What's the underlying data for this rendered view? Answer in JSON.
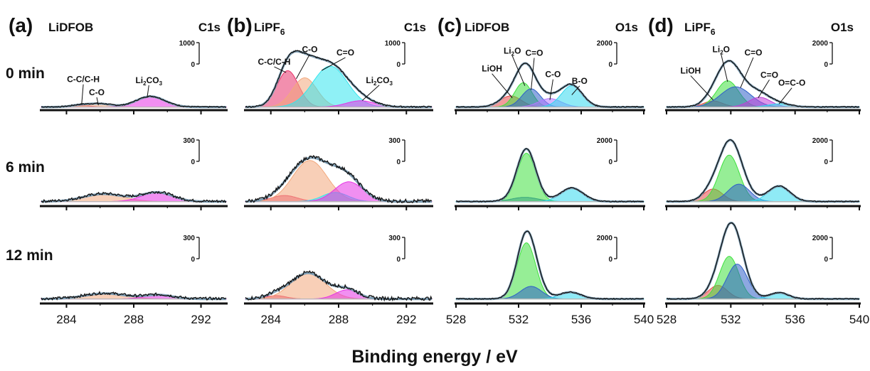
{
  "figure": {
    "xlabel": "Binding energy / eV",
    "panel_letters": [
      "(a)",
      "(b)",
      "(c)",
      "(d)"
    ],
    "time_labels": [
      "0 min",
      "6 min",
      "12 min"
    ]
  },
  "colors": {
    "raw": "#111111",
    "envelope": "#7f9fb5",
    "background": "#b8b8b8",
    "CC": "#e8336b",
    "CO": "#f3a87c",
    "CdO": "#33e6ee",
    "Li2CO3": "#e533e5",
    "LiOH": "#e84b4b",
    "Li2O": "#3fe03f",
    "C=O": "#3060c8",
    "C-O": "#b478ff",
    "B-O": "#33d8ee",
    "C=O2": "#c040d8",
    "O=C-O": "#33d8ee"
  },
  "chart_data": [
    {
      "panel": "(a)",
      "electrolyte": "LiDFOB",
      "region": "C1s",
      "type": "line",
      "xlim": [
        282.5,
        293.5
      ],
      "xticks": [
        284,
        288,
        292
      ],
      "xlabel": "Binding energy / eV",
      "rows": [
        {
          "time": "0 min",
          "scale_label": [
            "1000",
            "0"
          ],
          "scale_value": 1000,
          "ymax": 1450,
          "noise": 12,
          "labels": [
            {
              "text": "C-C/C-H",
              "x": 285.0,
              "y": 560,
              "ax": 284.9,
              "ay": 70
            },
            {
              "text": "C-O",
              "x": 285.8,
              "y": 280,
              "ax": 285.9,
              "ay": 60
            },
            {
              "text": "Li2CO3",
              "x": 288.9,
              "y": 540,
              "ax": 288.8,
              "ay": 230
            }
          ],
          "peaks": [
            {
              "name": "C-C/C-H",
              "colorKey": "CC",
              "center": 284.8,
              "fwhm": 1.3,
              "height": 40
            },
            {
              "name": "C-O",
              "colorKey": "CO",
              "center": 286.0,
              "fwhm": 1.6,
              "height": 70
            },
            {
              "name": "Li2CO3",
              "colorKey": "Li2CO3",
              "center": 289.0,
              "fwhm": 2.0,
              "height": 230
            }
          ]
        },
        {
          "time": "6 min",
          "scale_label": [
            "300",
            "0"
          ],
          "scale_value": 300,
          "ymax": 420,
          "noise": 9,
          "labels": [],
          "peaks": [
            {
              "name": "C-O",
              "colorKey": "CO",
              "center": 286.2,
              "fwhm": 2.8,
              "height": 50
            },
            {
              "name": "Li2CO3",
              "colorKey": "Li2CO3",
              "center": 289.4,
              "fwhm": 2.2,
              "height": 60
            }
          ]
        },
        {
          "time": "12 min",
          "scale_label": [
            "300",
            "0"
          ],
          "scale_value": 300,
          "ymax": 420,
          "noise": 9,
          "labels": [],
          "peaks": [
            {
              "name": "C-O",
              "colorKey": "CO",
              "center": 286.3,
              "fwhm": 2.9,
              "height": 36
            },
            {
              "name": "Li2CO3",
              "colorKey": "Li2CO3",
              "center": 289.5,
              "fwhm": 2.0,
              "height": 26
            }
          ]
        }
      ]
    },
    {
      "panel": "(b)",
      "electrolyte": "LiPF",
      "electrolyte_sub": "6",
      "region": "C1s",
      "type": "line",
      "xlim": [
        282.5,
        293.5
      ],
      "xticks": [
        284,
        288,
        292
      ],
      "xlabel": "Binding energy / eV",
      "rows": [
        {
          "time": "0 min",
          "scale_label": [
            "1000",
            "0"
          ],
          "scale_value": 1000,
          "ymax": 1600,
          "noise": 18,
          "labels": [
            {
              "text": "C-C/C-H",
              "x": 284.2,
              "y": 1040,
              "ax": 284.9,
              "ay": 850
            },
            {
              "text": "C-O",
              "x": 286.3,
              "y": 1340,
              "ax": 285.5,
              "ay": 700
            },
            {
              "text": "C=O",
              "x": 288.4,
              "y": 1260,
              "ax": 287.0,
              "ay": 900
            },
            {
              "text": "Li2CO3",
              "x": 290.4,
              "y": 600,
              "ax": 289.4,
              "ay": 180
            }
          ],
          "peaks": [
            {
              "name": "C-C/C-H",
              "colorKey": "CC",
              "center": 285.0,
              "fwhm": 1.5,
              "height": 870
            },
            {
              "name": "C-O",
              "colorKey": "CO",
              "center": 286.0,
              "fwhm": 1.7,
              "height": 700
            },
            {
              "name": "C=O",
              "colorKey": "CdO",
              "center": 287.5,
              "fwhm": 2.4,
              "height": 980
            },
            {
              "name": "Li2CO3",
              "colorKey": "Li2CO3",
              "center": 289.3,
              "fwhm": 2.0,
              "height": 150
            }
          ]
        },
        {
          "time": "6 min",
          "scale_label": [
            "300",
            "0"
          ],
          "scale_value": 300,
          "ymax": 420,
          "noise": 12,
          "labels": [],
          "peaks": [
            {
              "name": "C-C/C-H",
              "colorKey": "CC",
              "center": 284.8,
              "fwhm": 1.8,
              "height": 40
            },
            {
              "name": "C-O",
              "colorKey": "CO",
              "center": 286.3,
              "fwhm": 2.4,
              "height": 270
            },
            {
              "name": "C=O",
              "colorKey": "CdO",
              "center": 287.8,
              "fwhm": 1.8,
              "height": 60
            },
            {
              "name": "Li2CO3",
              "colorKey": "Li2CO3",
              "center": 288.6,
              "fwhm": 2.0,
              "height": 130
            }
          ]
        },
        {
          "time": "12 min",
          "scale_label": [
            "300",
            "0"
          ],
          "scale_value": 300,
          "ymax": 420,
          "noise": 12,
          "labels": [],
          "peaks": [
            {
              "name": "C-C/C-H",
              "colorKey": "CC",
              "center": 284.3,
              "fwhm": 1.4,
              "height": 22
            },
            {
              "name": "C-O",
              "colorKey": "CO",
              "center": 286.2,
              "fwhm": 2.4,
              "height": 170
            },
            {
              "name": "Li2CO3",
              "colorKey": "Li2CO3",
              "center": 288.5,
              "fwhm": 1.6,
              "height": 60
            }
          ]
        }
      ]
    },
    {
      "panel": "(c)",
      "electrolyte": "LiDFOB",
      "region": "O1s",
      "type": "line",
      "xlim": [
        528,
        540
      ],
      "xticks": [
        528,
        532,
        536,
        540
      ],
      "xlabel": "Binding energy / eV",
      "rows": [
        {
          "time": "0 min",
          "scale_label": [
            "2000",
            "0"
          ],
          "scale_value": 2000,
          "ymax": 3300,
          "noise": 25,
          "labels": [
            {
              "text": "LiOH",
              "x": 530.3,
              "y": 1800,
              "ax": 531.6,
              "ay": 500
            },
            {
              "text": "Li2O",
              "x": 531.6,
              "y": 2680,
              "ax": 532.4,
              "ay": 1100
            },
            {
              "text": "C=O",
              "x": 533.0,
              "y": 2580,
              "ax": 532.8,
              "ay": 900
            },
            {
              "text": "C-O",
              "x": 534.2,
              "y": 1520,
              "ax": 534.0,
              "ay": 400
            },
            {
              "text": "B-O",
              "x": 535.9,
              "y": 1200,
              "ax": 535.4,
              "ay": 650
            }
          ],
          "peaks": [
            {
              "name": "LiOH",
              "colorKey": "LiOH",
              "center": 531.5,
              "fwhm": 1.6,
              "height": 550
            },
            {
              "name": "Li2O",
              "colorKey": "Li2O",
              "center": 532.3,
              "fwhm": 1.3,
              "height": 1200
            },
            {
              "name": "C=O",
              "colorKey": "C=O",
              "center": 532.8,
              "fwhm": 1.4,
              "height": 900
            },
            {
              "name": "C-O",
              "colorKey": "C-O",
              "center": 534.0,
              "fwhm": 1.7,
              "height": 420
            },
            {
              "name": "B-O",
              "colorKey": "B-O",
              "center": 535.4,
              "fwhm": 1.6,
              "height": 1050
            }
          ]
        },
        {
          "time": "6 min",
          "scale_label": [
            "2000",
            "0"
          ],
          "scale_value": 2000,
          "ymax": 3300,
          "noise": 25,
          "labels": [],
          "peaks": [
            {
              "name": "C=O",
              "colorKey": "C=O",
              "center": 532.4,
              "fwhm": 2.0,
              "height": 220
            },
            {
              "name": "Li2O",
              "colorKey": "Li2O",
              "center": 532.5,
              "fwhm": 1.4,
              "height": 2500
            },
            {
              "name": "B-O",
              "colorKey": "B-O",
              "center": 535.4,
              "fwhm": 1.7,
              "height": 700
            }
          ]
        },
        {
          "time": "12 min",
          "scale_label": [
            "2000",
            "0"
          ],
          "scale_value": 2000,
          "ymax": 3300,
          "noise": 25,
          "labels": [],
          "peaks": [
            {
              "name": "Li2O",
              "colorKey": "Li2O",
              "center": 532.5,
              "fwhm": 1.4,
              "height": 2900
            },
            {
              "name": "C=O",
              "colorKey": "C=O",
              "center": 532.8,
              "fwhm": 1.6,
              "height": 650
            },
            {
              "name": "B-O",
              "colorKey": "B-O",
              "center": 535.3,
              "fwhm": 1.6,
              "height": 350
            }
          ]
        }
      ]
    },
    {
      "panel": "(d)",
      "electrolyte": "LiPF",
      "electrolyte_sub": "6",
      "region": "O1s",
      "type": "line",
      "xlim": [
        528,
        540
      ],
      "xticks": [
        528,
        532,
        536,
        540
      ],
      "xlabel": "Binding energy / eV",
      "rows": [
        {
          "time": "0 min",
          "scale_label": [
            "2000",
            "0"
          ],
          "scale_value": 2000,
          "ymax": 3300,
          "noise": 25,
          "labels": [
            {
              "text": "LiOH",
              "x": 529.5,
              "y": 1700,
              "ax": 530.9,
              "ay": 400
            },
            {
              "text": "Li2O",
              "x": 531.4,
              "y": 2750,
              "ax": 531.8,
              "ay": 1300
            },
            {
              "text": "C=O",
              "x": 533.4,
              "y": 2600,
              "ax": 532.6,
              "ay": 1000
            },
            {
              "text": "C=O",
              "x": 534.4,
              "y": 1500,
              "ax": 533.7,
              "ay": 500
            },
            {
              "text": "O=C-O",
              "x": 535.8,
              "y": 1100,
              "ax": 535.0,
              "ay": 200
            }
          ],
          "peaks": [
            {
              "name": "LiOH",
              "colorKey": "LiOH",
              "center": 530.9,
              "fwhm": 1.4,
              "height": 300
            },
            {
              "name": "Li2O",
              "colorKey": "Li2O",
              "center": 531.8,
              "fwhm": 1.6,
              "height": 1300
            },
            {
              "name": "C=O",
              "colorKey": "C=O",
              "center": 532.3,
              "fwhm": 2.2,
              "height": 1000
            },
            {
              "name": "C=O",
              "colorKey": "C=O2",
              "center": 533.8,
              "fwhm": 1.6,
              "height": 480
            },
            {
              "name": "O=C-O",
              "colorKey": "O=C-O",
              "center": 535.0,
              "fwhm": 1.6,
              "height": 160
            }
          ]
        },
        {
          "time": "6 min",
          "scale_label": [
            "2000",
            "0"
          ],
          "scale_value": 2000,
          "ymax": 3300,
          "noise": 25,
          "labels": [],
          "peaks": [
            {
              "name": "LiOH",
              "colorKey": "LiOH",
              "center": 530.9,
              "fwhm": 1.4,
              "height": 650
            },
            {
              "name": "Li2O",
              "colorKey": "Li2O",
              "center": 531.9,
              "fwhm": 1.5,
              "height": 2400
            },
            {
              "name": "C=O",
              "colorKey": "C=O",
              "center": 532.5,
              "fwhm": 1.6,
              "height": 900
            },
            {
              "name": "O=C-O",
              "colorKey": "O=C-O",
              "center": 535.0,
              "fwhm": 1.6,
              "height": 800
            }
          ]
        },
        {
          "time": "12 min",
          "scale_label": [
            "2000",
            "0"
          ],
          "scale_value": 2000,
          "ymax": 3300,
          "noise": 25,
          "labels": [],
          "peaks": [
            {
              "name": "LiOH",
              "colorKey": "LiOH",
              "center": 531.2,
              "fwhm": 1.4,
              "height": 700
            },
            {
              "name": "Li2O",
              "colorKey": "Li2O",
              "center": 531.9,
              "fwhm": 1.4,
              "height": 2200
            },
            {
              "name": "C=O",
              "colorKey": "C=O",
              "center": 532.4,
              "fwhm": 1.5,
              "height": 1800
            },
            {
              "name": "O=C-O",
              "colorKey": "O=C-O",
              "center": 535.0,
              "fwhm": 1.4,
              "height": 320
            }
          ]
        }
      ]
    }
  ]
}
